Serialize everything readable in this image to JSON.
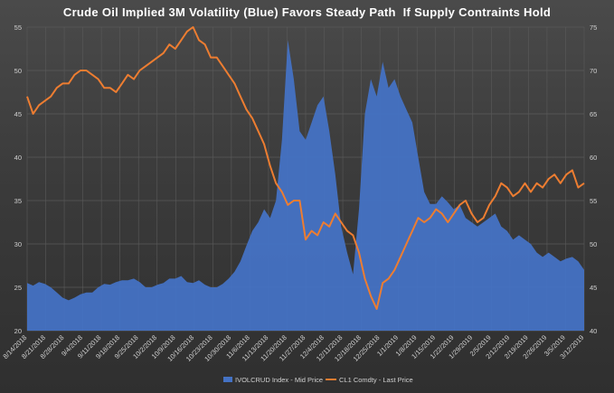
{
  "chart_data": {
    "type": "area+line",
    "title": "Crude Oil Implied 3M Volatility (Blue) Favors Steady Path  If Supply Contraints Hold",
    "colors": {
      "area": "#4472c4",
      "line": "#ed7d31",
      "grid": "#5a5a5a",
      "text": "#d0d0d0"
    },
    "left_axis": {
      "min": 20,
      "max": 55,
      "ticks": [
        20,
        25,
        30,
        35,
        40,
        45,
        50,
        55
      ]
    },
    "right_axis": {
      "min": 40,
      "max": 75,
      "ticks": [
        40,
        45,
        50,
        55,
        60,
        65,
        70,
        75
      ]
    },
    "x_labels": [
      "8/14/2018",
      "8/21/2018",
      "8/28/2018",
      "9/4/2018",
      "9/11/2018",
      "9/18/2018",
      "9/25/2018",
      "10/2/2018",
      "10/9/2018",
      "10/16/2018",
      "10/23/2018",
      "10/30/2018",
      "11/6/2018",
      "11/13/2018",
      "11/20/2018",
      "11/27/2018",
      "12/4/2018",
      "12/11/2018",
      "12/18/2018",
      "12/25/2018",
      "1/1/2019",
      "1/8/2019",
      "1/15/2019",
      "1/22/2019",
      "1/29/2019",
      "2/5/2019",
      "2/12/2019",
      "2/19/2019",
      "2/26/2019",
      "3/5/2019",
      "3/12/2019"
    ],
    "grid": true,
    "legend_position": "bottom",
    "series": [
      {
        "name": "IVOLCRUD Index - Mid Price",
        "axis": "left",
        "style": "area",
        "values": [
          25.5,
          25.2,
          25.6,
          25.4,
          25.0,
          24.4,
          23.8,
          23.5,
          23.8,
          24.2,
          24.4,
          24.4,
          25.0,
          25.4,
          25.3,
          25.6,
          25.8,
          25.8,
          26.0,
          25.6,
          25.0,
          25.0,
          25.3,
          25.5,
          26.0,
          26.0,
          26.3,
          25.6,
          25.5,
          25.8,
          25.3,
          25.0,
          25.0,
          25.4,
          26.0,
          26.8,
          28.0,
          29.8,
          31.5,
          32.5,
          34.0,
          33.0,
          35.0,
          42.0,
          53.5,
          49.0,
          43.0,
          42.0,
          44.0,
          46.0,
          47.0,
          43.0,
          38.0,
          32.0,
          29.0,
          26.5,
          34.0,
          45.0,
          49.0,
          47.0,
          51.0,
          48.0,
          49.0,
          47.0,
          45.5,
          44.0,
          40.0,
          36.0,
          34.6,
          34.6,
          35.5,
          34.8,
          34.0,
          34.5,
          33.0,
          32.5,
          32.0,
          32.5,
          33.0,
          33.5,
          32.0,
          31.5,
          30.5,
          31.0,
          30.5,
          30.0,
          29.0,
          28.5,
          29.0,
          28.5,
          28.0,
          28.3,
          28.5,
          28.0,
          27.0
        ]
      },
      {
        "name": "CL1 Comdty - Last Price",
        "axis": "right",
        "style": "line",
        "values": [
          67.0,
          65.0,
          66.0,
          66.5,
          67.0,
          68.0,
          68.5,
          68.5,
          69.5,
          70.0,
          70.0,
          69.5,
          69.0,
          68.0,
          68.0,
          67.5,
          68.5,
          69.5,
          69.0,
          70.0,
          70.5,
          71.0,
          71.5,
          72.0,
          73.0,
          72.5,
          73.5,
          74.5,
          75.0,
          73.5,
          73.0,
          71.5,
          71.5,
          70.5,
          69.5,
          68.5,
          67.0,
          65.5,
          64.5,
          63.0,
          61.5,
          59.0,
          57.0,
          56.0,
          54.5,
          55.0,
          55.0,
          50.5,
          51.5,
          51.0,
          52.5,
          52.0,
          53.5,
          52.5,
          51.5,
          51.0,
          49.0,
          46.0,
          44.0,
          42.5,
          45.5,
          46.0,
          47.0,
          48.5,
          50.0,
          51.5,
          53.0,
          52.5,
          53.0,
          54.0,
          53.5,
          52.5,
          53.5,
          54.5,
          55.0,
          53.5,
          52.5,
          53.0,
          54.5,
          55.5,
          57.0,
          56.5,
          55.5,
          56.0,
          57.0,
          56.0,
          57.0,
          56.5,
          57.5,
          58.0,
          57.0,
          58.0,
          58.5,
          56.5,
          57.0
        ]
      }
    ]
  }
}
